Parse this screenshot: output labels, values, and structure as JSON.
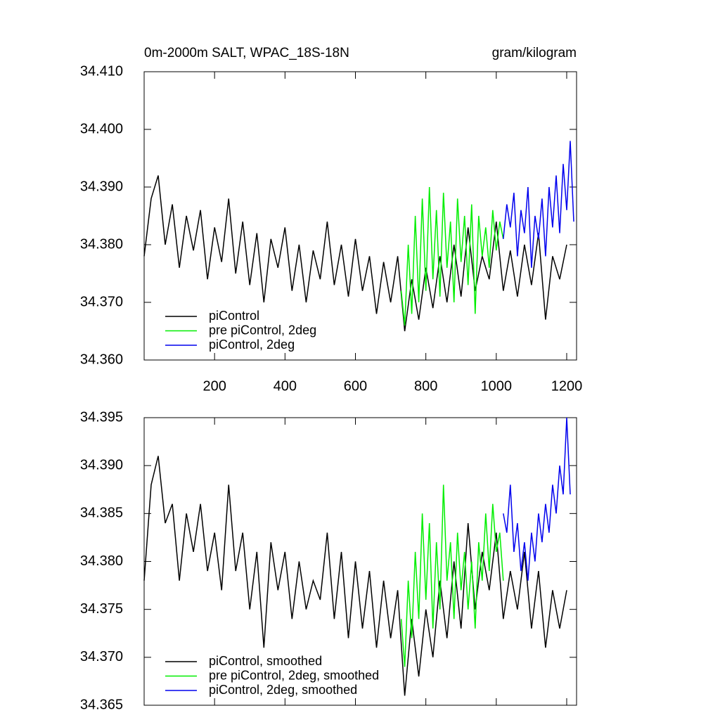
{
  "chart_data": [
    {
      "type": "line",
      "title": "0m-2000m SALT, WPAC_18S-18N",
      "units": "gram/kilogram",
      "xlim": [
        0,
        1228
      ],
      "ylim": [
        34.36,
        34.41
      ],
      "xticks": [
        200,
        400,
        600,
        800,
        1000,
        1200
      ],
      "xtick_labels": true,
      "yticks": [
        {
          "value": 34.36,
          "label": "34.360"
        },
        {
          "value": 34.37,
          "label": "34.370"
        },
        {
          "value": 34.38,
          "label": "34.380"
        },
        {
          "value": 34.39,
          "label": "34.390"
        },
        {
          "value": 34.4,
          "label": "34.400"
        },
        {
          "value": 34.41,
          "label": "34.410"
        }
      ],
      "legend": "lower-left",
      "series": [
        {
          "name": "piControl",
          "color": "#000000",
          "x": [
            0,
            20,
            40,
            60,
            80,
            100,
            120,
            140,
            160,
            180,
            200,
            220,
            240,
            260,
            280,
            300,
            320,
            340,
            360,
            380,
            400,
            420,
            440,
            460,
            480,
            500,
            520,
            540,
            560,
            580,
            600,
            620,
            640,
            660,
            680,
            700,
            720,
            740,
            760,
            780,
            800,
            820,
            840,
            860,
            880,
            900,
            920,
            940,
            960,
            980,
            1000,
            1020,
            1040,
            1060,
            1080,
            1100,
            1120,
            1140,
            1160,
            1180,
            1200
          ],
          "values": [
            34.378,
            34.388,
            34.392,
            34.38,
            34.387,
            34.376,
            34.385,
            34.379,
            34.386,
            34.374,
            34.383,
            34.377,
            34.388,
            34.375,
            34.384,
            34.373,
            34.382,
            34.37,
            34.381,
            34.376,
            34.383,
            34.372,
            34.38,
            34.37,
            34.379,
            34.374,
            34.384,
            34.373,
            34.38,
            34.371,
            34.381,
            34.372,
            34.378,
            34.368,
            34.377,
            34.37,
            34.378,
            34.365,
            34.374,
            34.367,
            34.376,
            34.369,
            34.378,
            34.37,
            34.38,
            34.371,
            34.383,
            34.372,
            34.378,
            34.374,
            34.384,
            34.372,
            34.379,
            34.371,
            34.38,
            34.373,
            34.382,
            34.367,
            34.378,
            34.374,
            34.38
          ]
        },
        {
          "name": "pre piControl, 2deg",
          "color": "#00ee00",
          "x": [
            730,
            740,
            750,
            760,
            770,
            780,
            790,
            800,
            810,
            820,
            830,
            840,
            850,
            860,
            870,
            880,
            890,
            900,
            910,
            920,
            930,
            940,
            950,
            960,
            970,
            980,
            990,
            1000,
            1010,
            1020
          ],
          "values": [
            34.372,
            34.366,
            34.38,
            34.368,
            34.385,
            34.37,
            34.388,
            34.372,
            34.39,
            34.374,
            34.386,
            34.371,
            34.389,
            34.376,
            34.384,
            34.37,
            34.388,
            34.377,
            34.385,
            34.373,
            34.387,
            34.368,
            34.385,
            34.378,
            34.383,
            34.376,
            34.386,
            34.379,
            34.384,
            34.381
          ]
        },
        {
          "name": "piControl, 2deg",
          "color": "#0000ee",
          "x": [
            1020,
            1030,
            1040,
            1050,
            1060,
            1070,
            1080,
            1090,
            1100,
            1110,
            1120,
            1130,
            1140,
            1150,
            1160,
            1170,
            1180,
            1190,
            1200,
            1210,
            1220
          ],
          "values": [
            34.381,
            34.387,
            34.383,
            34.389,
            34.378,
            34.386,
            34.382,
            34.39,
            34.376,
            34.385,
            34.381,
            34.388,
            34.378,
            34.39,
            34.383,
            34.392,
            34.382,
            34.394,
            34.386,
            34.398,
            34.384
          ]
        }
      ]
    },
    {
      "type": "line",
      "xlim": [
        0,
        1228
      ],
      "ylim": [
        34.365,
        34.395
      ],
      "xticks": [
        200,
        400,
        600,
        800,
        1000,
        1200
      ],
      "xtick_labels": false,
      "yticks": [
        {
          "value": 34.365,
          "label": "34.365"
        },
        {
          "value": 34.37,
          "label": "34.370"
        },
        {
          "value": 34.375,
          "label": "34.375"
        },
        {
          "value": 34.38,
          "label": "34.380"
        },
        {
          "value": 34.385,
          "label": "34.385"
        },
        {
          "value": 34.39,
          "label": "34.390"
        },
        {
          "value": 34.395,
          "label": "34.395"
        }
      ],
      "legend": "lower-left",
      "series": [
        {
          "name": "piControl, smoothed",
          "color": "#000000",
          "x": [
            0,
            20,
            40,
            60,
            80,
            100,
            120,
            140,
            160,
            180,
            200,
            220,
            240,
            260,
            280,
            300,
            320,
            340,
            360,
            380,
            400,
            420,
            440,
            460,
            480,
            500,
            520,
            540,
            560,
            580,
            600,
            620,
            640,
            660,
            680,
            700,
            720,
            740,
            760,
            780,
            800,
            820,
            840,
            860,
            880,
            900,
            920,
            940,
            960,
            980,
            1000,
            1020,
            1040,
            1060,
            1080,
            1100,
            1120,
            1140,
            1160,
            1180,
            1200
          ],
          "values": [
            34.378,
            34.388,
            34.391,
            34.384,
            34.386,
            34.378,
            34.385,
            34.381,
            34.386,
            34.379,
            34.383,
            34.377,
            34.388,
            34.379,
            34.383,
            34.375,
            34.381,
            34.371,
            34.382,
            34.377,
            34.381,
            34.374,
            34.38,
            34.375,
            34.378,
            34.376,
            34.383,
            34.374,
            34.381,
            34.372,
            34.38,
            34.373,
            34.379,
            34.371,
            34.378,
            34.372,
            34.377,
            34.366,
            34.374,
            34.368,
            34.375,
            34.37,
            34.378,
            34.372,
            34.38,
            34.373,
            34.384,
            34.375,
            34.381,
            34.377,
            34.383,
            34.374,
            34.379,
            34.375,
            34.381,
            34.373,
            34.379,
            34.371,
            34.377,
            34.373,
            34.377
          ]
        },
        {
          "name": "pre piControl, 2deg, smoothed",
          "color": "#00ee00",
          "x": [
            730,
            740,
            750,
            760,
            770,
            780,
            790,
            800,
            810,
            820,
            830,
            840,
            850,
            860,
            870,
            880,
            890,
            900,
            910,
            920,
            930,
            940,
            950,
            960,
            970,
            980,
            990,
            1000,
            1010,
            1020
          ],
          "values": [
            34.374,
            34.369,
            34.378,
            34.372,
            34.381,
            34.374,
            34.385,
            34.376,
            34.384,
            34.373,
            34.382,
            34.375,
            34.388,
            34.378,
            34.382,
            34.374,
            34.383,
            34.377,
            34.381,
            34.375,
            34.38,
            34.373,
            34.382,
            34.378,
            34.385,
            34.379,
            34.386,
            34.381,
            34.383,
            34.378
          ]
        },
        {
          "name": "piControl, 2deg, smoothed",
          "color": "#0000ee",
          "x": [
            1020,
            1030,
            1040,
            1050,
            1060,
            1070,
            1080,
            1090,
            1100,
            1110,
            1120,
            1130,
            1140,
            1150,
            1160,
            1170,
            1180,
            1190,
            1200,
            1210
          ],
          "values": [
            34.385,
            34.383,
            34.388,
            34.381,
            34.384,
            34.379,
            34.382,
            34.378,
            34.383,
            34.38,
            34.385,
            34.382,
            34.386,
            34.383,
            34.388,
            34.385,
            34.39,
            34.387,
            34.395,
            34.387
          ]
        }
      ]
    }
  ]
}
